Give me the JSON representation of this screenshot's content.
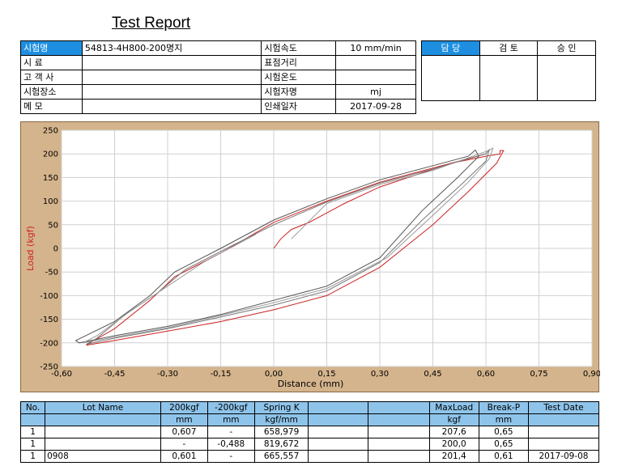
{
  "report_title": "Test Report",
  "info": {
    "rows": [
      {
        "label": "시험명",
        "value": "54813-4H800-200명지",
        "label2": "시험속도",
        "value2": "10 mm/min"
      },
      {
        "label": "시 료",
        "value": "",
        "label2": "표점거리",
        "value2": ""
      },
      {
        "label": "고 객 사",
        "value": "",
        "label2": "시험온도",
        "value2": ""
      },
      {
        "label": "시험장소",
        "value": "",
        "label2": "시험자명",
        "value2": "mj"
      },
      {
        "label": "메 모",
        "value": "",
        "label2": "인쇄일자",
        "value2": "2017-09-28"
      }
    ]
  },
  "approval": {
    "headers": [
      "담 당",
      "검 토",
      "승 인"
    ]
  },
  "chart_data": {
    "type": "line",
    "xlabel": "Distance (mm)",
    "ylabel": "Load (kgf)",
    "xlim": [
      -0.6,
      0.9
    ],
    "ylim": [
      -250,
      250
    ],
    "xticks": [
      "-0,60",
      "-0,45",
      "-0,30",
      "-0,15",
      "0,00",
      "0,15",
      "0,30",
      "0,45",
      "0,60",
      "0,75",
      "0,90"
    ],
    "yticks": [
      "250",
      "200",
      "150",
      "100",
      "50",
      "0",
      "-50",
      "-100",
      "-150",
      "-200",
      "-250"
    ],
    "grid": true,
    "colors": {
      "plot_bg": "#ffffff",
      "frame": "#d4b48c",
      "grid": "#d0d0d0",
      "ylabel": "#cc2222"
    },
    "series": [
      {
        "color": "#cc2222",
        "points": [
          [
            0.0,
            0
          ],
          [
            0.02,
            20
          ],
          [
            0.05,
            40
          ],
          [
            0.1,
            55
          ],
          [
            0.2,
            95
          ],
          [
            0.3,
            130
          ],
          [
            0.4,
            155
          ],
          [
            0.5,
            180
          ],
          [
            0.6,
            195
          ],
          [
            0.64,
            200
          ],
          [
            0.64,
            207
          ],
          [
            0.65,
            207
          ],
          [
            0.63,
            180
          ],
          [
            0.55,
            120
          ],
          [
            0.45,
            50
          ],
          [
            0.3,
            -40
          ],
          [
            0.15,
            -100
          ],
          [
            0.0,
            -130
          ],
          [
            -0.15,
            -155
          ],
          [
            -0.3,
            -175
          ],
          [
            -0.45,
            -195
          ],
          [
            -0.53,
            -205
          ],
          [
            -0.52,
            -200
          ],
          [
            -0.45,
            -170
          ],
          [
            -0.35,
            -110
          ],
          [
            -0.28,
            -60
          ],
          [
            -0.15,
            -10
          ],
          [
            0.0,
            55
          ],
          [
            0.15,
            100
          ],
          [
            0.3,
            140
          ],
          [
            0.45,
            170
          ],
          [
            0.6,
            200
          ]
        ]
      },
      {
        "color": "#555555",
        "points": [
          [
            0.0,
            60
          ],
          [
            0.15,
            105
          ],
          [
            0.3,
            145
          ],
          [
            0.45,
            175
          ],
          [
            0.55,
            195
          ],
          [
            0.57,
            208
          ],
          [
            0.58,
            195
          ],
          [
            0.52,
            150
          ],
          [
            0.42,
            80
          ],
          [
            0.3,
            -20
          ],
          [
            0.15,
            -80
          ],
          [
            0.0,
            -110
          ],
          [
            -0.15,
            -140
          ],
          [
            -0.3,
            -165
          ],
          [
            -0.45,
            -185
          ],
          [
            -0.55,
            -200
          ],
          [
            -0.56,
            -195
          ],
          [
            -0.45,
            -155
          ],
          [
            -0.35,
            -100
          ],
          [
            -0.28,
            -50
          ],
          [
            -0.15,
            0
          ],
          [
            0.0,
            60
          ]
        ]
      },
      {
        "color": "#777777",
        "points": [
          [
            0.0,
            50
          ],
          [
            0.15,
            98
          ],
          [
            0.3,
            138
          ],
          [
            0.45,
            168
          ],
          [
            0.6,
            200
          ],
          [
            0.61,
            210
          ],
          [
            0.6,
            185
          ],
          [
            0.53,
            135
          ],
          [
            0.42,
            60
          ],
          [
            0.3,
            -30
          ],
          [
            0.15,
            -90
          ],
          [
            0.0,
            -120
          ],
          [
            -0.15,
            -145
          ],
          [
            -0.3,
            -170
          ],
          [
            -0.45,
            -190
          ],
          [
            -0.53,
            -203
          ],
          [
            -0.5,
            -190
          ],
          [
            -0.42,
            -140
          ],
          [
            -0.33,
            -95
          ],
          [
            -0.25,
            -45
          ],
          [
            -0.12,
            5
          ],
          [
            0.0,
            50
          ]
        ]
      },
      {
        "color": "#999999",
        "points": [
          [
            0.05,
            20
          ],
          [
            0.15,
            95
          ],
          [
            0.3,
            135
          ],
          [
            0.45,
            165
          ],
          [
            0.6,
            205
          ],
          [
            0.62,
            212
          ],
          [
            0.61,
            190
          ],
          [
            0.55,
            140
          ],
          [
            0.45,
            70
          ],
          [
            0.32,
            -20
          ],
          [
            0.15,
            -85
          ],
          [
            0.0,
            -115
          ],
          [
            -0.15,
            -142
          ],
          [
            -0.3,
            -168
          ],
          [
            -0.45,
            -188
          ],
          [
            -0.54,
            -200
          ],
          [
            -0.5,
            -185
          ],
          [
            -0.4,
            -130
          ],
          [
            -0.3,
            -80
          ],
          [
            -0.2,
            -30
          ],
          [
            -0.05,
            30
          ]
        ]
      }
    ]
  },
  "table": {
    "headers": [
      "No.",
      "Lot Name",
      "200kgf",
      "-200kgf",
      "Spring K",
      "",
      "",
      "MaxLoad",
      "Break-P",
      "Test Date"
    ],
    "units": [
      "",
      "",
      "mm",
      "mm",
      "kgf/mm",
      "",
      "",
      "kgf",
      "mm",
      ""
    ],
    "rows": [
      [
        "1",
        "",
        "0,607",
        "-",
        "658,979",
        "",
        "",
        "207,6",
        "0,65",
        ""
      ],
      [
        "1",
        "",
        "-",
        "-0,488",
        "819,672",
        "",
        "",
        "200,0",
        "0,65",
        ""
      ],
      [
        "1",
        "0908",
        "0,601",
        "-",
        "665,557",
        "",
        "",
        "201,4",
        "0,61",
        "2017-09-08"
      ]
    ]
  }
}
